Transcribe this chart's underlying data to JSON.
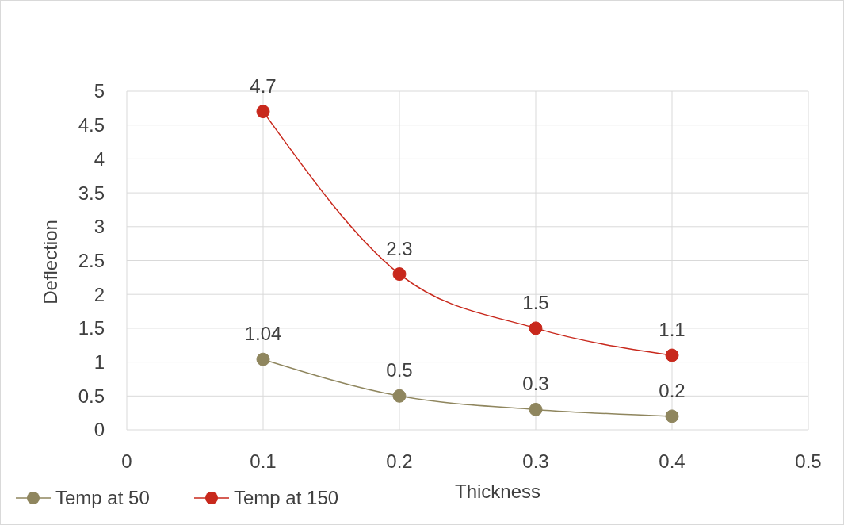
{
  "chart_data": {
    "type": "line",
    "xlabel": "Thickness",
    "ylabel": "Deflection",
    "xlim": [
      0,
      0.5
    ],
    "xticks": [
      0,
      0.1,
      0.2,
      0.3,
      0.4,
      0.5
    ],
    "ylim": [
      0,
      5
    ],
    "yticks": [
      0,
      0.5,
      1,
      1.5,
      2,
      2.5,
      3,
      3.5,
      4,
      4.5,
      5
    ],
    "grid": true,
    "legend": "bottom left",
    "marker": "circle",
    "line_style": "solid",
    "data_labels": true,
    "x": [
      0.1,
      0.2,
      0.3,
      0.4
    ],
    "series": [
      {
        "name": "Temp at 50",
        "color": "#8f865e",
        "values": [
          1.04,
          0.5,
          0.3,
          0.2
        ]
      },
      {
        "name": "Temp at 150",
        "color": "#c8281c",
        "values": [
          4.7,
          2.3,
          1.5,
          1.1
        ]
      }
    ]
  }
}
